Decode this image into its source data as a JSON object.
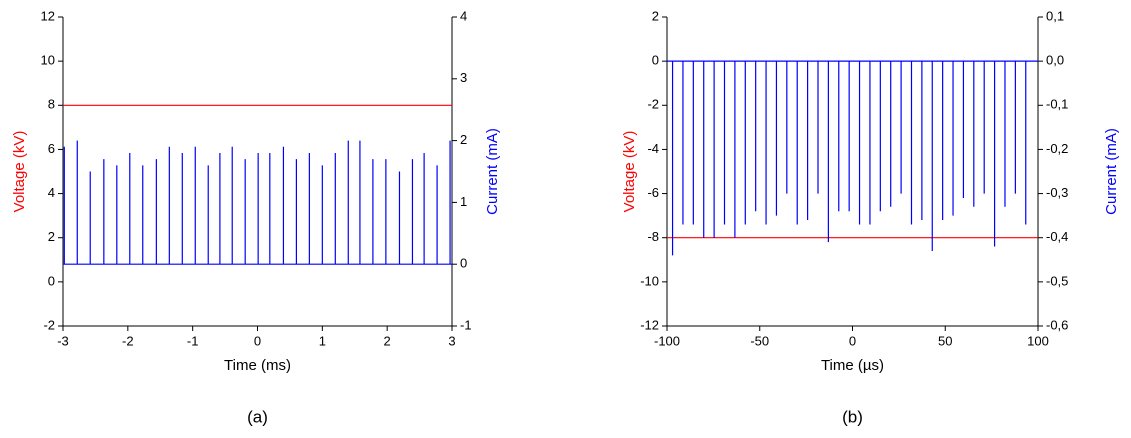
{
  "chart_data": [
    {
      "type": "line",
      "x_label": "Time (ms)",
      "y_label": "Voltage (kV)",
      "y2_label": "Current (mA)",
      "caption": "(a)",
      "xlim": [
        -3,
        3
      ],
      "xticks": [
        -3,
        -2,
        -1,
        0,
        1,
        2,
        3
      ],
      "ylim": [
        -2,
        12
      ],
      "yticks": [
        -2,
        0,
        2,
        4,
        6,
        8,
        10,
        12
      ],
      "y2lim": [
        -1,
        4
      ],
      "y2ticks": [
        -1,
        0,
        1,
        2,
        3,
        4
      ],
      "series": [
        {
          "color": "#ff0000",
          "x": [
            -3,
            3
          ],
          "values": [
            8,
            8
          ]
        },
        {
          "color": "#0000ff",
          "axis": "y2",
          "x": [
            -3,
            -2.98,
            -2.98,
            -2.98,
            -2.78,
            -2.78,
            -2.78,
            -2.58,
            -2.58,
            -2.58,
            -2.37,
            -2.37,
            -2.37,
            -2.17,
            -2.17,
            -2.17,
            -1.97,
            -1.97,
            -1.97,
            -1.77,
            -1.77,
            -1.77,
            -1.56,
            -1.56,
            -1.56,
            -1.36,
            -1.36,
            -1.36,
            -1.16,
            -1.16,
            -1.16,
            -0.96,
            -0.96,
            -0.96,
            -0.76,
            -0.76,
            -0.76,
            -0.58,
            -0.58,
            -0.58,
            -0.39,
            -0.39,
            -0.39,
            -0.19,
            -0.19,
            -0.19,
            0.01,
            0.01,
            0.01,
            0.19,
            0.19,
            0.19,
            0.4,
            0.4,
            0.4,
            0.6,
            0.6,
            0.6,
            0.8,
            0.8,
            0.8,
            1,
            1,
            1,
            1.2,
            1.2,
            1.2,
            1.4,
            1.4,
            1.4,
            1.58,
            1.58,
            1.58,
            1.78,
            1.78,
            1.78,
            1.98,
            1.98,
            1.98,
            2.19,
            2.19,
            2.19,
            2.39,
            2.39,
            2.39,
            2.57,
            2.57,
            2.57,
            2.77,
            2.77,
            2.77,
            2.97,
            2.97,
            2.97,
            3
          ],
          "values": [
            0,
            0,
            1.9,
            0,
            0,
            2,
            0,
            0,
            1.5,
            0,
            0,
            1.7,
            0,
            0,
            1.6,
            0,
            0,
            1.8,
            0,
            0,
            1.6,
            0,
            0,
            1.7,
            0,
            0,
            1.9,
            0,
            0,
            1.8,
            0,
            0,
            1.9,
            0,
            0,
            1.6,
            0,
            0,
            1.8,
            0,
            0,
            1.9,
            0,
            0,
            1.7,
            0,
            0,
            1.8,
            0,
            0,
            1.8,
            0,
            0,
            1.9,
            0,
            0,
            1.7,
            0,
            0,
            1.8,
            0,
            0,
            1.6,
            0,
            0,
            1.8,
            0,
            0,
            2,
            0,
            0,
            2,
            0,
            0,
            1.7,
            0,
            0,
            1.7,
            0,
            0,
            1.5,
            0,
            0,
            1.7,
            0,
            0,
            1.8,
            0,
            0,
            1.6,
            0,
            0,
            2,
            0,
            0
          ]
        }
      ]
    },
    {
      "type": "line",
      "x_label": "Time (µs)",
      "y_label": "Voltage (kV)",
      "y2_label": "Current (mA)",
      "caption": "(b)",
      "xlim": [
        -100,
        100
      ],
      "xticks": [
        -100,
        -50,
        0,
        50,
        100
      ],
      "ylim": [
        -12,
        2
      ],
      "yticks": [
        -12,
        -10,
        -8,
        -6,
        -4,
        -2,
        0,
        2
      ],
      "y2lim": [
        -0.6,
        0.1
      ],
      "y2ticks": [
        {
          "value": -0.6,
          "label": "-0,6"
        },
        {
          "value": -0.5,
          "label": "-0,5"
        },
        {
          "value": -0.4,
          "label": "-0,4"
        },
        {
          "value": -0.3,
          "label": "-0,3"
        },
        {
          "value": -0.2,
          "label": "-0,2"
        },
        {
          "value": -0.1,
          "label": "-0,1"
        },
        {
          "value": 0,
          "label": "0,0"
        },
        {
          "value": 0.1,
          "label": "0,1"
        }
      ],
      "series": [
        {
          "color": "#ff0000",
          "x": [
            -100,
            100
          ],
          "values": [
            -8,
            -8
          ]
        },
        {
          "color": "#0000ff",
          "axis": "y2",
          "x": [
            -100,
            -97,
            -97,
            -97,
            -91.4,
            -91.4,
            -91.4,
            -85.8,
            -85.8,
            -85.8,
            -80.2,
            -80.2,
            -80.2,
            -74.6,
            -74.6,
            -74.6,
            -69,
            -69,
            -69,
            -63.4,
            -63.4,
            -63.4,
            -57.8,
            -57.8,
            -57.8,
            -52.2,
            -52.2,
            -52.2,
            -46.6,
            -46.6,
            -46.6,
            -41,
            -41,
            -41,
            -35.4,
            -35.4,
            -35.4,
            -29.8,
            -29.8,
            -29.8,
            -24.2,
            -24.2,
            -24.2,
            -18.6,
            -18.6,
            -18.6,
            -13,
            -13,
            -13,
            -7.4,
            -7.4,
            -7.4,
            -1.8,
            -1.8,
            -1.8,
            3.8,
            3.8,
            3.8,
            9.4,
            9.4,
            9.4,
            15,
            15,
            15,
            20.6,
            20.6,
            20.6,
            26.2,
            26.2,
            26.2,
            31.8,
            31.8,
            31.8,
            37.4,
            37.4,
            37.4,
            43,
            43,
            43,
            48.6,
            48.6,
            48.6,
            54.2,
            54.2,
            54.2,
            59.8,
            59.8,
            59.8,
            65.4,
            65.4,
            65.4,
            71,
            71,
            71,
            76.6,
            76.6,
            76.6,
            82.2,
            82.2,
            82.2,
            87.8,
            87.8,
            87.8,
            93.4,
            93.4,
            93.4,
            100
          ],
          "values": [
            0,
            0,
            -0.44,
            0,
            0,
            -0.37,
            0,
            0,
            -0.37,
            0,
            0,
            -0.4,
            0,
            0,
            -0.4,
            0,
            0,
            -0.37,
            0,
            0,
            -0.4,
            0,
            0,
            -0.37,
            0,
            0,
            -0.34,
            0,
            0,
            -0.37,
            0,
            0,
            -0.35,
            0,
            0,
            -0.3,
            0,
            0,
            -0.37,
            0,
            0,
            -0.36,
            0,
            0,
            -0.3,
            0,
            0,
            -0.41,
            0,
            0,
            -0.34,
            0,
            0,
            -0.34,
            0,
            0,
            -0.37,
            0,
            0,
            -0.37,
            0,
            0,
            -0.34,
            0,
            0,
            -0.33,
            0,
            0,
            -0.3,
            0,
            0,
            -0.37,
            0,
            0,
            -0.36,
            0,
            0,
            -0.43,
            0,
            0,
            -0.36,
            0,
            0,
            -0.35,
            0,
            0,
            -0.31,
            0,
            0,
            -0.33,
            0,
            0,
            -0.3,
            0,
            0,
            -0.42,
            0,
            0,
            -0.33,
            0,
            0,
            -0.3,
            0,
            0,
            -0.37,
            0,
            0
          ]
        }
      ]
    }
  ]
}
